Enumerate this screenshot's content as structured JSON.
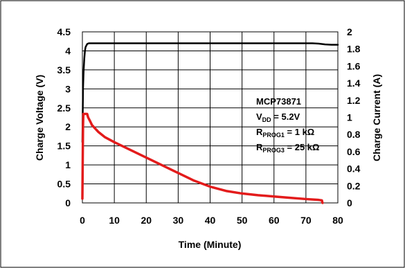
{
  "chart_data": {
    "type": "line",
    "title": "",
    "xlabel": "Time (Minute)",
    "ylabel_left": "Charge Voltage (V)",
    "ylabel_right": "Charge Current (A)",
    "xlim": [
      0,
      80
    ],
    "ylim_left": [
      0,
      4.5
    ],
    "ylim_right": [
      0,
      2
    ],
    "x_ticks": [
      "0",
      "10",
      "20",
      "30",
      "40",
      "50",
      "60",
      "70",
      "80"
    ],
    "y_left_ticks": [
      "0",
      "0.5",
      "1",
      "1.5",
      "2",
      "2.5",
      "3",
      "3.5",
      "4",
      "4.5"
    ],
    "y_right_ticks": [
      "0",
      "0.2",
      "0.4",
      "0.6",
      "0.8",
      "1",
      "1.2",
      "1.4",
      "1.6",
      "1.8",
      "2"
    ],
    "grid": true,
    "annotation": {
      "line1": "MCP73871",
      "line2_main": "V",
      "line2_sub": "DD",
      "line2_rest": " = 5.2V",
      "line3_main": "R",
      "line3_sub": "PROG1",
      "line3_rest": " = 1 kΩ",
      "line4_main": "R",
      "line4_sub": "PROG3",
      "line4_rest": " = 25 kΩ"
    },
    "series": [
      {
        "axis": "left",
        "color": "#000000",
        "x": [
          0,
          0.2,
          0.4,
          0.6,
          0.8,
          1,
          1.5,
          2,
          5,
          10,
          20,
          30,
          40,
          50,
          60,
          70,
          72,
          74,
          76,
          78,
          80
        ],
        "y": [
          1.6,
          3.0,
          3.5,
          3.8,
          4.0,
          4.1,
          4.18,
          4.2,
          4.2,
          4.2,
          4.2,
          4.2,
          4.2,
          4.2,
          4.2,
          4.2,
          4.2,
          4.19,
          4.17,
          4.16,
          4.16
        ]
      },
      {
        "axis": "right",
        "color": "#e31b1b",
        "x": [
          0,
          0.2,
          0.3,
          0.5,
          0.8,
          1.5,
          1.8,
          2.5,
          3,
          4,
          5,
          7,
          10,
          15,
          20,
          25,
          30,
          35,
          40,
          45,
          50,
          55,
          60,
          65,
          70,
          74,
          75,
          75.2
        ],
        "y": [
          0.05,
          0.9,
          1.04,
          1.04,
          1.04,
          1.04,
          1.0,
          0.95,
          0.91,
          0.87,
          0.83,
          0.77,
          0.71,
          0.62,
          0.53,
          0.44,
          0.35,
          0.26,
          0.19,
          0.14,
          0.11,
          0.09,
          0.075,
          0.06,
          0.045,
          0.035,
          0.03,
          0.0
        ]
      }
    ]
  }
}
